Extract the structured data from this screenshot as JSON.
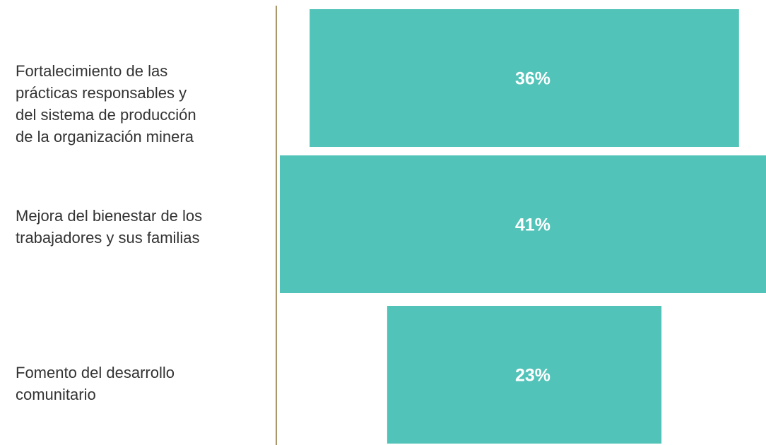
{
  "chart_data": {
    "type": "bar",
    "orientation": "horizontal",
    "categories": [
      "Fortalecimiento de las\nprácticas responsables y\ndel sistema de producción\nde la organización minera",
      "Mejora del bienestar de los\ntrabajadores y sus familias",
      "Fomento del desarrollo\ncomunitario"
    ],
    "values": [
      36,
      41,
      23
    ],
    "data_labels": [
      "36%",
      "41%",
      "23%"
    ],
    "value_unit": "%",
    "bar_alignment": "center",
    "title": "",
    "xlabel": "",
    "ylabel": "",
    "legend": "none",
    "grid": false
  },
  "colors": {
    "bar": "#52C3B8",
    "axis_line": "#A9986A",
    "label_text": "#333333",
    "value_text": "#FFFFFF"
  }
}
